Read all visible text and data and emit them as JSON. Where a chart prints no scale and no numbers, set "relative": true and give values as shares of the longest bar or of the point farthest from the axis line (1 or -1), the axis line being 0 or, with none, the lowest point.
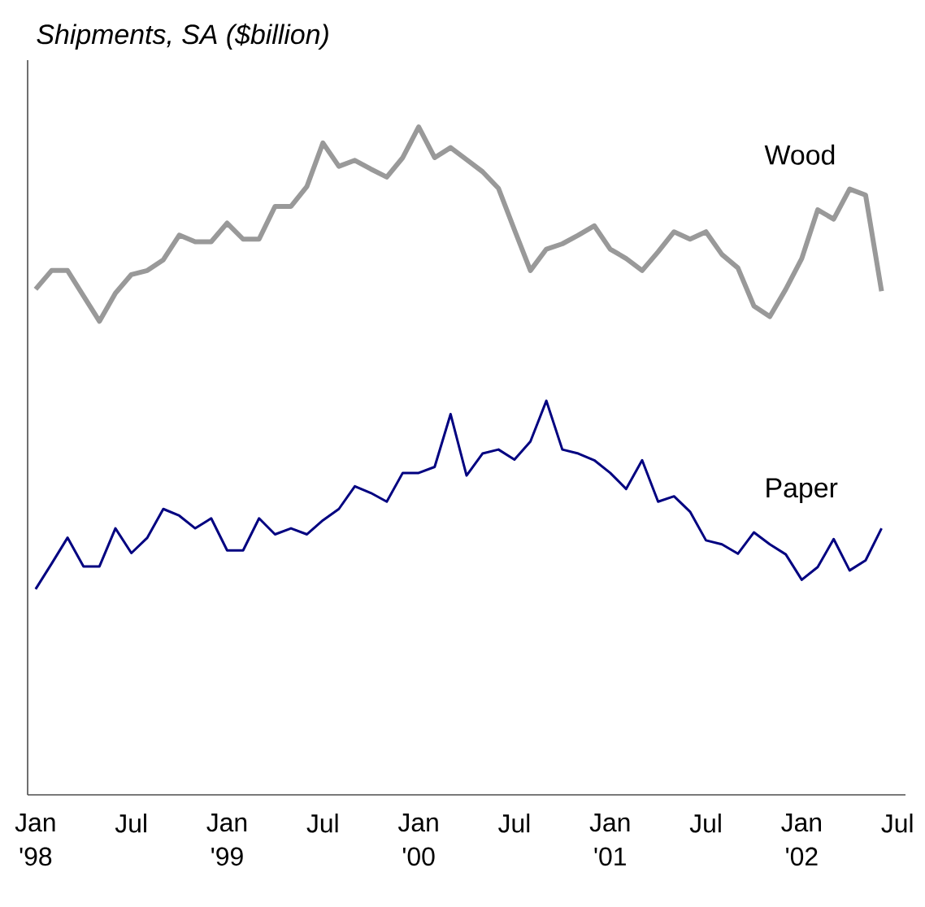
{
  "chart_data": {
    "type": "line",
    "title": "Shipments, SA ($billion)",
    "relative": true,
    "marker": "none",
    "categories": [
      "Jan '98",
      null,
      null,
      null,
      null,
      null,
      "Jul",
      null,
      null,
      null,
      null,
      null,
      "Jan '99",
      null,
      null,
      null,
      null,
      null,
      "Jul",
      null,
      null,
      null,
      null,
      null,
      "Jan '00",
      null,
      null,
      null,
      null,
      null,
      "Jul",
      null,
      null,
      null,
      null,
      null,
      "Jan '01",
      null,
      null,
      null,
      null,
      null,
      "Jul",
      null,
      null,
      null,
      null,
      null,
      "Jan '02",
      null,
      null,
      null,
      null,
      null,
      "Jul"
    ],
    "series": [
      {
        "name": "Wood",
        "color": "#999999",
        "values": [
          0.757,
          0.785,
          0.785,
          0.747,
          0.709,
          0.751,
          0.779,
          0.785,
          0.801,
          0.838,
          0.828,
          0.828,
          0.856,
          0.832,
          0.832,
          0.881,
          0.881,
          0.911,
          0.976,
          0.941,
          0.95,
          0.937,
          0.925,
          0.954,
          1.0,
          0.954,
          0.969,
          0.951,
          0.933,
          0.908,
          0.846,
          0.785,
          0.817,
          0.825,
          0.838,
          0.852,
          0.817,
          0.803,
          0.785,
          0.813,
          0.843,
          0.832,
          0.843,
          0.809,
          0.789,
          0.732,
          0.716,
          0.757,
          0.803,
          0.876,
          0.862,
          0.907,
          0.898,
          0.754,
          null
        ]
      },
      {
        "name": "Paper",
        "color": "#000080",
        "values": [
          0.308,
          0.346,
          0.385,
          0.342,
          0.342,
          0.399,
          0.362,
          0.385,
          0.428,
          0.418,
          0.399,
          0.414,
          0.366,
          0.366,
          0.414,
          0.39,
          0.399,
          0.39,
          0.411,
          0.428,
          0.462,
          0.452,
          0.439,
          0.482,
          0.482,
          0.491,
          0.57,
          0.478,
          0.511,
          0.517,
          0.502,
          0.529,
          0.59,
          0.517,
          0.511,
          0.501,
          0.482,
          0.458,
          0.501,
          0.439,
          0.447,
          0.424,
          0.381,
          0.375,
          0.361,
          0.393,
          0.375,
          0.36,
          0.322,
          0.341,
          0.383,
          0.336,
          0.351,
          0.399,
          null
        ]
      }
    ]
  }
}
